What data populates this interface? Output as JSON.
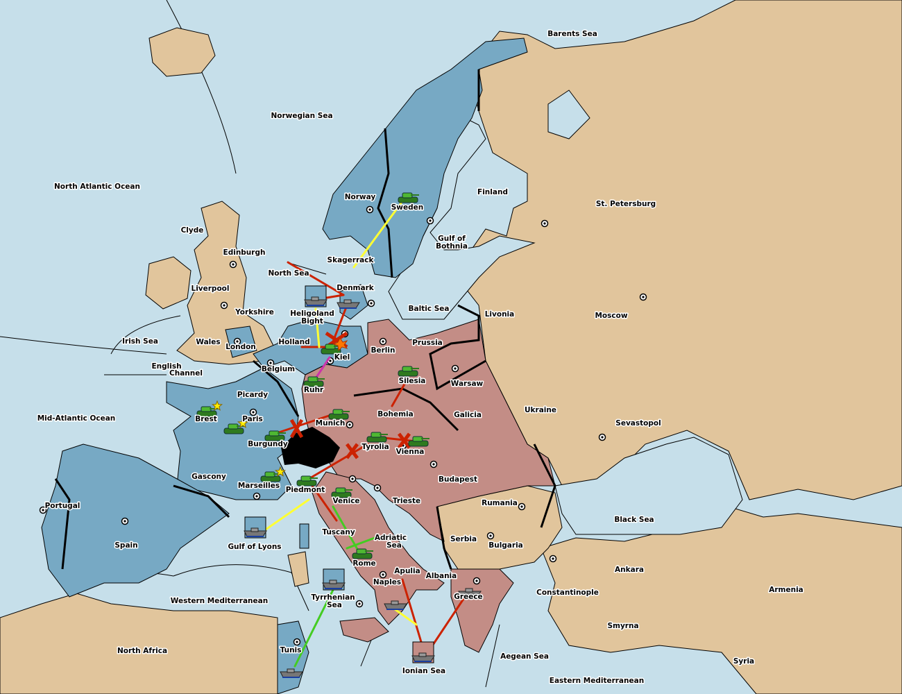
{
  "colors": {
    "sea": "#c6dfea",
    "neutral": "#e1c59c",
    "blue_power": "#77a9c4",
    "pink_power": "#c38d86",
    "impassable": "#000000",
    "move": "#cc2200",
    "support": "#ffff33",
    "convoy": "#44cc22",
    "retreat": "#cc33aa"
  },
  "labels": {
    "barents": "Barents Sea",
    "norwegian": "Norwegian Sea",
    "natl": "North Atlantic Ocean",
    "norway": "Norway",
    "sweden": "Sweden",
    "finland": "Finland",
    "stp": "St. Petersburg",
    "bothnia1": "Gulf of",
    "bothnia2": "Bothnia",
    "clyde": "Clyde",
    "edinburgh": "Edinburgh",
    "skag": "Skagerrack",
    "north_sea": "North Sea",
    "liverpool": "Liverpool",
    "denmark": "Denmark",
    "baltic": "Baltic Sea",
    "livonia": "Livonia",
    "moscow": "Moscow",
    "yorkshire": "Yorkshire",
    "heli1": "Heligoland",
    "heli2": "Bight",
    "irish": "Irish Sea",
    "wales": "Wales",
    "london": "London",
    "holland": "Holland",
    "prussia": "Prussia",
    "berlin": "Berlin",
    "kiel": "Kiel",
    "eng1": "English",
    "eng2": "Channel",
    "belgium": "Belgium",
    "silesia": "Silesia",
    "warsaw": "Warsaw",
    "ruhr": "Ruhr",
    "picardy": "Picardy",
    "ukraine": "Ukraine",
    "brest": "Brest",
    "paris": "Paris",
    "bohemia": "Bohemia",
    "galicia": "Galicia",
    "mao": "Mid-Atlantic Ocean",
    "munich": "Munich",
    "sevastopol": "Sevastopol",
    "burgundy": "Burgundy",
    "tyrolia": "Tyrolia",
    "vienna": "Vienna",
    "gascony": "Gascony",
    "budapest": "Budapest",
    "marseilles": "Marseilles",
    "piedmont": "Piedmont",
    "portugal": "Portugal",
    "venice": "Venice",
    "trieste": "Trieste",
    "rumania": "Rumania",
    "black": "Black Sea",
    "tuscany": "Tuscany",
    "lyons": "Gulf of Lyons",
    "spain": "Spain",
    "adr1": "Adriatic",
    "adr2": "Sea",
    "serbia": "Serbia",
    "bulgaria": "Bulgaria",
    "rome": "Rome",
    "apulia": "Apulia",
    "ankara": "Ankara",
    "albania": "Albania",
    "naples": "Naples",
    "armenia": "Armenia",
    "con": "Constantinople",
    "greece": "Greece",
    "tyr1": "Tyrrhenian",
    "tyr2": "Sea",
    "wmed": "Western Mediterranean",
    "smyrna": "Smyrna",
    "naf": "North Africa",
    "tunis": "Tunis",
    "aegean": "Aegean Sea",
    "syria": "Syria",
    "ionian": "Ionian Sea",
    "emed": "Eastern Mediterranean"
  },
  "units": {
    "armies": [
      "Sweden",
      "Kiel",
      "Ruhr",
      "Munich",
      "Silesia",
      "Burgundy",
      "Brest",
      "Paris",
      "Tyrolia",
      "Vienna",
      "Marseilles",
      "Piedmont",
      "Venice",
      "Rome"
    ],
    "fleets": [
      "Denmark",
      "Heligoland Bight",
      "Gulf of Lyons",
      "Tyrrhenian Sea",
      "Naples",
      "Greece",
      "Ionian Sea",
      "Tunis"
    ],
    "army_icon": "tank-icon",
    "fleet_icon": "battleship-icon",
    "star_icon": "star-icon",
    "bounce_icon": "explosion-icon"
  }
}
